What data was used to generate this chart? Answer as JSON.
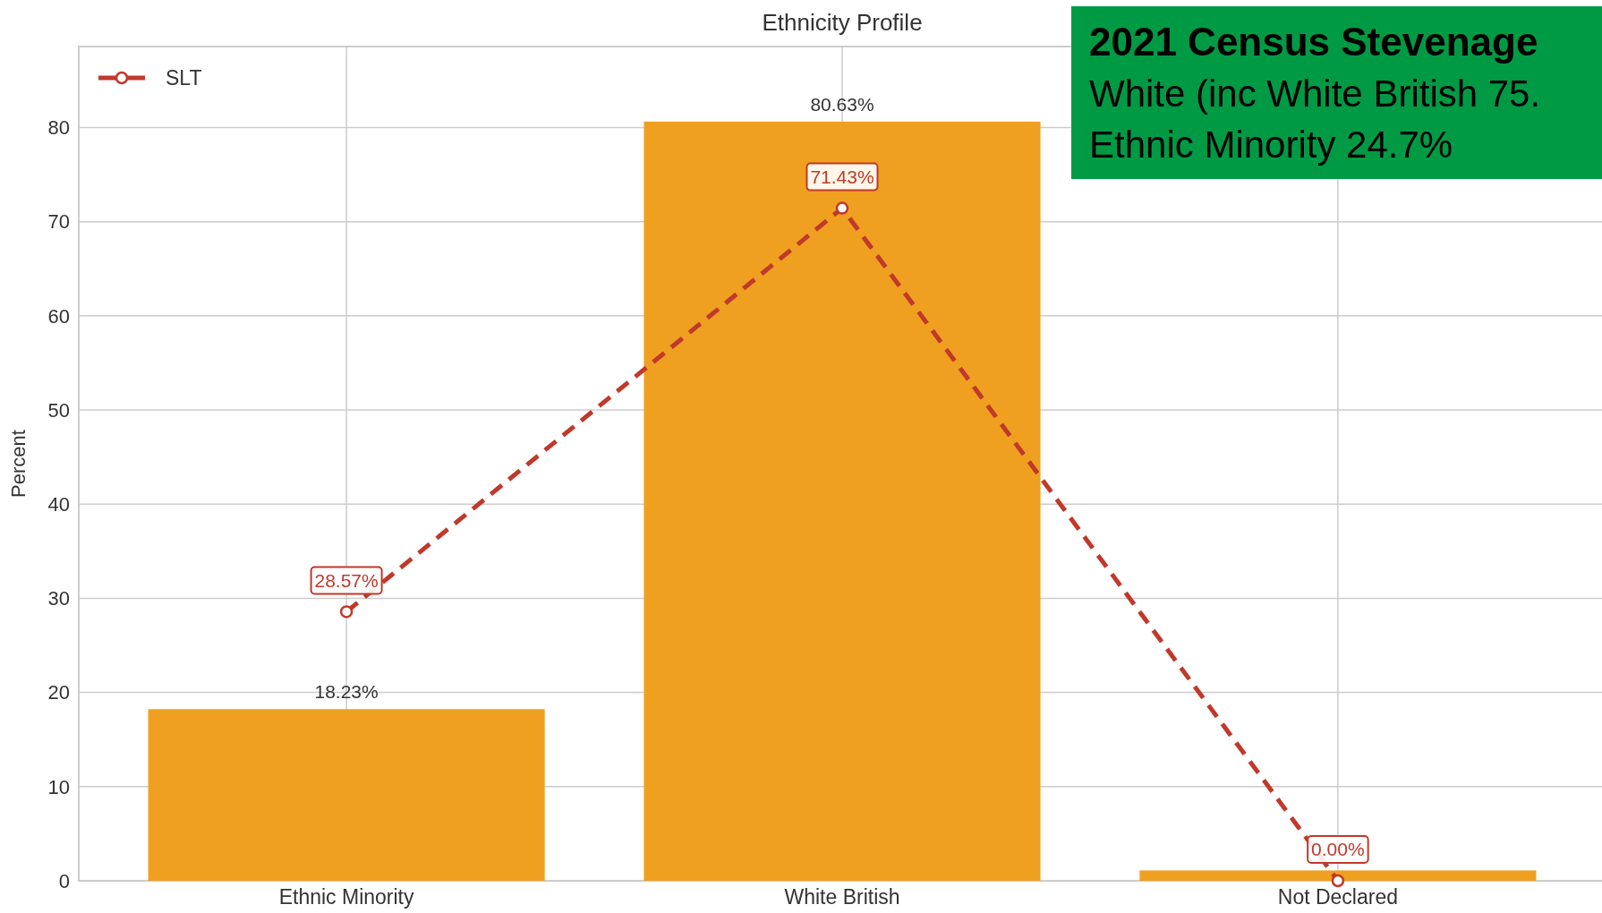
{
  "chart_data": {
    "type": "bar",
    "title": "Ethnicity Profile",
    "ylabel": "Percent",
    "categories": [
      "Ethnic Minority",
      "White British",
      "Not Declared"
    ],
    "series": [
      {
        "color": "#f0a020",
        "values": [
          18.23,
          80.63,
          1.1
        ],
        "value_labels": [
          "18.23%",
          "80.63%",
          null
        ]
      },
      {
        "type": "line",
        "name": "SLT",
        "color": "#c0392b",
        "values": [
          28.57,
          71.43,
          0.0
        ],
        "value_labels": [
          "28.57%",
          "71.43%",
          "0.00%"
        ]
      }
    ],
    "ylim": [
      0,
      88.6
    ],
    "yticks": [
      0,
      10,
      20,
      30,
      40,
      50,
      60,
      70,
      80
    ],
    "grid": true,
    "legend": "top left",
    "marker": "circle",
    "line_style": "dashed",
    "annotations": [
      "2021 Census Stevenage",
      "White (inc White British 75.",
      "Ethnic Minority 24.7%"
    ]
  }
}
